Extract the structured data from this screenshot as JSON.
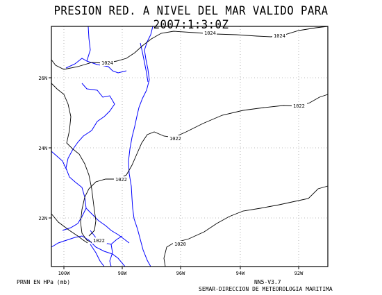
{
  "title": "PRESION RED. A NIVEL DEL MAR VALIDO PARA 2007:1:3:0Z",
  "lon_ticks": [
    "100W",
    "98W",
    "96W",
    "94W",
    "92W"
  ],
  "lat_ticks": [
    "26N",
    "24N",
    "22N"
  ],
  "isobar_labels": [
    "1024",
    "1024",
    "1024",
    "1022",
    "1022",
    "1022",
    "1022",
    "1020"
  ],
  "footer": {
    "units": "PRNN EN HPa (mb)",
    "model": "NN5-V3.7",
    "credit": "SEMAR-DIRECCION DE METEOROLOGIA MARITIMA"
  },
  "colors": {
    "coastline": "#0000ff",
    "isobar": "#000000",
    "grid": "#808080"
  }
}
